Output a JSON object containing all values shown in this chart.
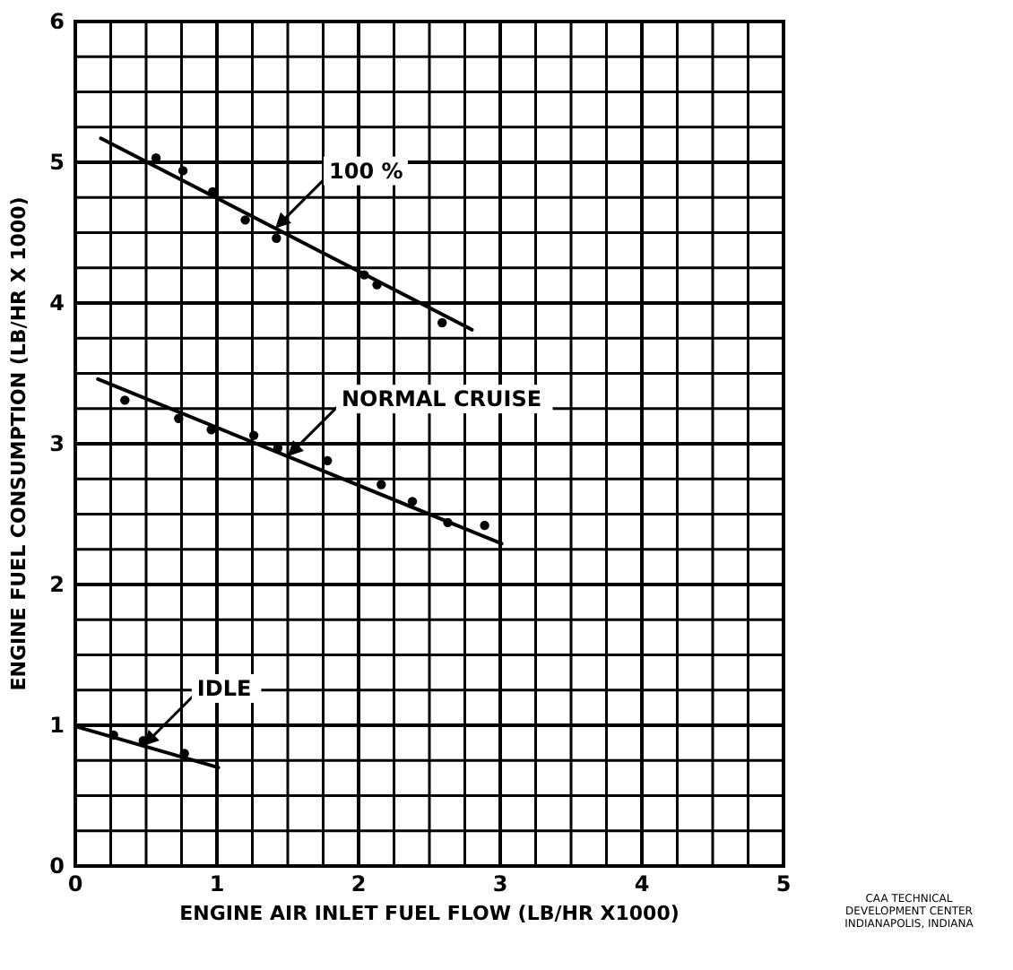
{
  "chart_data": {
    "type": "scatter",
    "xlabel": "ENGINE AIR INLET FUEL FLOW   (LB/HR X1000)",
    "ylabel": "ENGINE FUEL CONSUMPTION  (LB/HR X 1000)",
    "xlim": [
      0,
      5
    ],
    "ylim": [
      0,
      6
    ],
    "xticks": [
      0,
      {
        "value": 0.25,
        "label": null
      },
      {
        "value": 0.5,
        "label": null
      },
      {
        "value": 0.75,
        "label": null
      },
      1,
      {
        "value": 1.25,
        "label": null
      },
      {
        "value": 1.5,
        "label": null
      },
      {
        "value": 1.75,
        "label": null
      },
      2,
      {
        "value": 2.25,
        "label": null
      },
      {
        "value": 2.5,
        "label": null
      },
      {
        "value": 2.75,
        "label": null
      },
      3,
      {
        "value": 3.25,
        "label": null
      },
      {
        "value": 3.5,
        "label": null
      },
      {
        "value": 3.75,
        "label": null
      },
      4,
      {
        "value": 4.25,
        "label": null
      },
      {
        "value": 4.5,
        "label": null
      },
      {
        "value": 4.75,
        "label": null
      },
      5
    ],
    "yticks": [
      0,
      {
        "value": 0.25,
        "label": null
      },
      {
        "value": 0.5,
        "label": null
      },
      {
        "value": 0.75,
        "label": null
      },
      1,
      {
        "value": 1.25,
        "label": null
      },
      {
        "value": 1.5,
        "label": null
      },
      {
        "value": 1.75,
        "label": null
      },
      2,
      {
        "value": 2.25,
        "label": null
      },
      {
        "value": 2.5,
        "label": null
      },
      {
        "value": 2.75,
        "label": null
      },
      3,
      {
        "value": 3.25,
        "label": null
      },
      {
        "value": 3.5,
        "label": null
      },
      {
        "value": 3.75,
        "label": null
      },
      4,
      {
        "value": 4.25,
        "label": null
      },
      {
        "value": 4.5,
        "label": null
      },
      {
        "value": 4.75,
        "label": null
      },
      5,
      {
        "value": 5.25,
        "label": null
      },
      {
        "value": 5.5,
        "label": null
      },
      {
        "value": 5.75,
        "label": null
      },
      6
    ],
    "grid": true,
    "series": [
      {
        "marker": "circle",
        "color": "#000000",
        "x": [
          0.57,
          0.76,
          0.97,
          1.2,
          1.42,
          2.04,
          2.13,
          2.59
        ],
        "values": [
          5.03,
          4.94,
          4.79,
          4.59,
          4.46,
          4.2,
          4.13,
          3.86
        ]
      },
      {
        "type": "line",
        "name": "100 %",
        "color": "#000000",
        "x": [
          0.18,
          2.8
        ],
        "values": [
          5.17,
          3.81
        ]
      },
      {
        "marker": "circle",
        "color": "#000000",
        "x": [
          0.35,
          0.73,
          0.96,
          1.26,
          1.43,
          1.78,
          2.16,
          2.38,
          2.63,
          2.89
        ],
        "values": [
          3.31,
          3.18,
          3.1,
          3.06,
          2.97,
          2.88,
          2.71,
          2.59,
          2.44,
          2.42
        ]
      },
      {
        "type": "line",
        "name": "NORMAL  CRUISE",
        "color": "#000000",
        "x": [
          0.16,
          3.01
        ],
        "values": [
          3.46,
          2.29
        ]
      },
      {
        "marker": "circle",
        "color": "#000000",
        "x": [
          0.27,
          0.48,
          0.77
        ],
        "values": [
          0.93,
          0.89,
          0.8
        ]
      },
      {
        "type": "line",
        "name": "IDLE",
        "color": "#000000",
        "x": [
          0.01,
          1.01
        ],
        "values": [
          0.99,
          0.7
        ]
      }
    ],
    "annotations": [
      "CAA TECHNICAL\nDEVELOPMENT CENTER\nINDIANAPOLIS, INDIANA"
    ]
  }
}
